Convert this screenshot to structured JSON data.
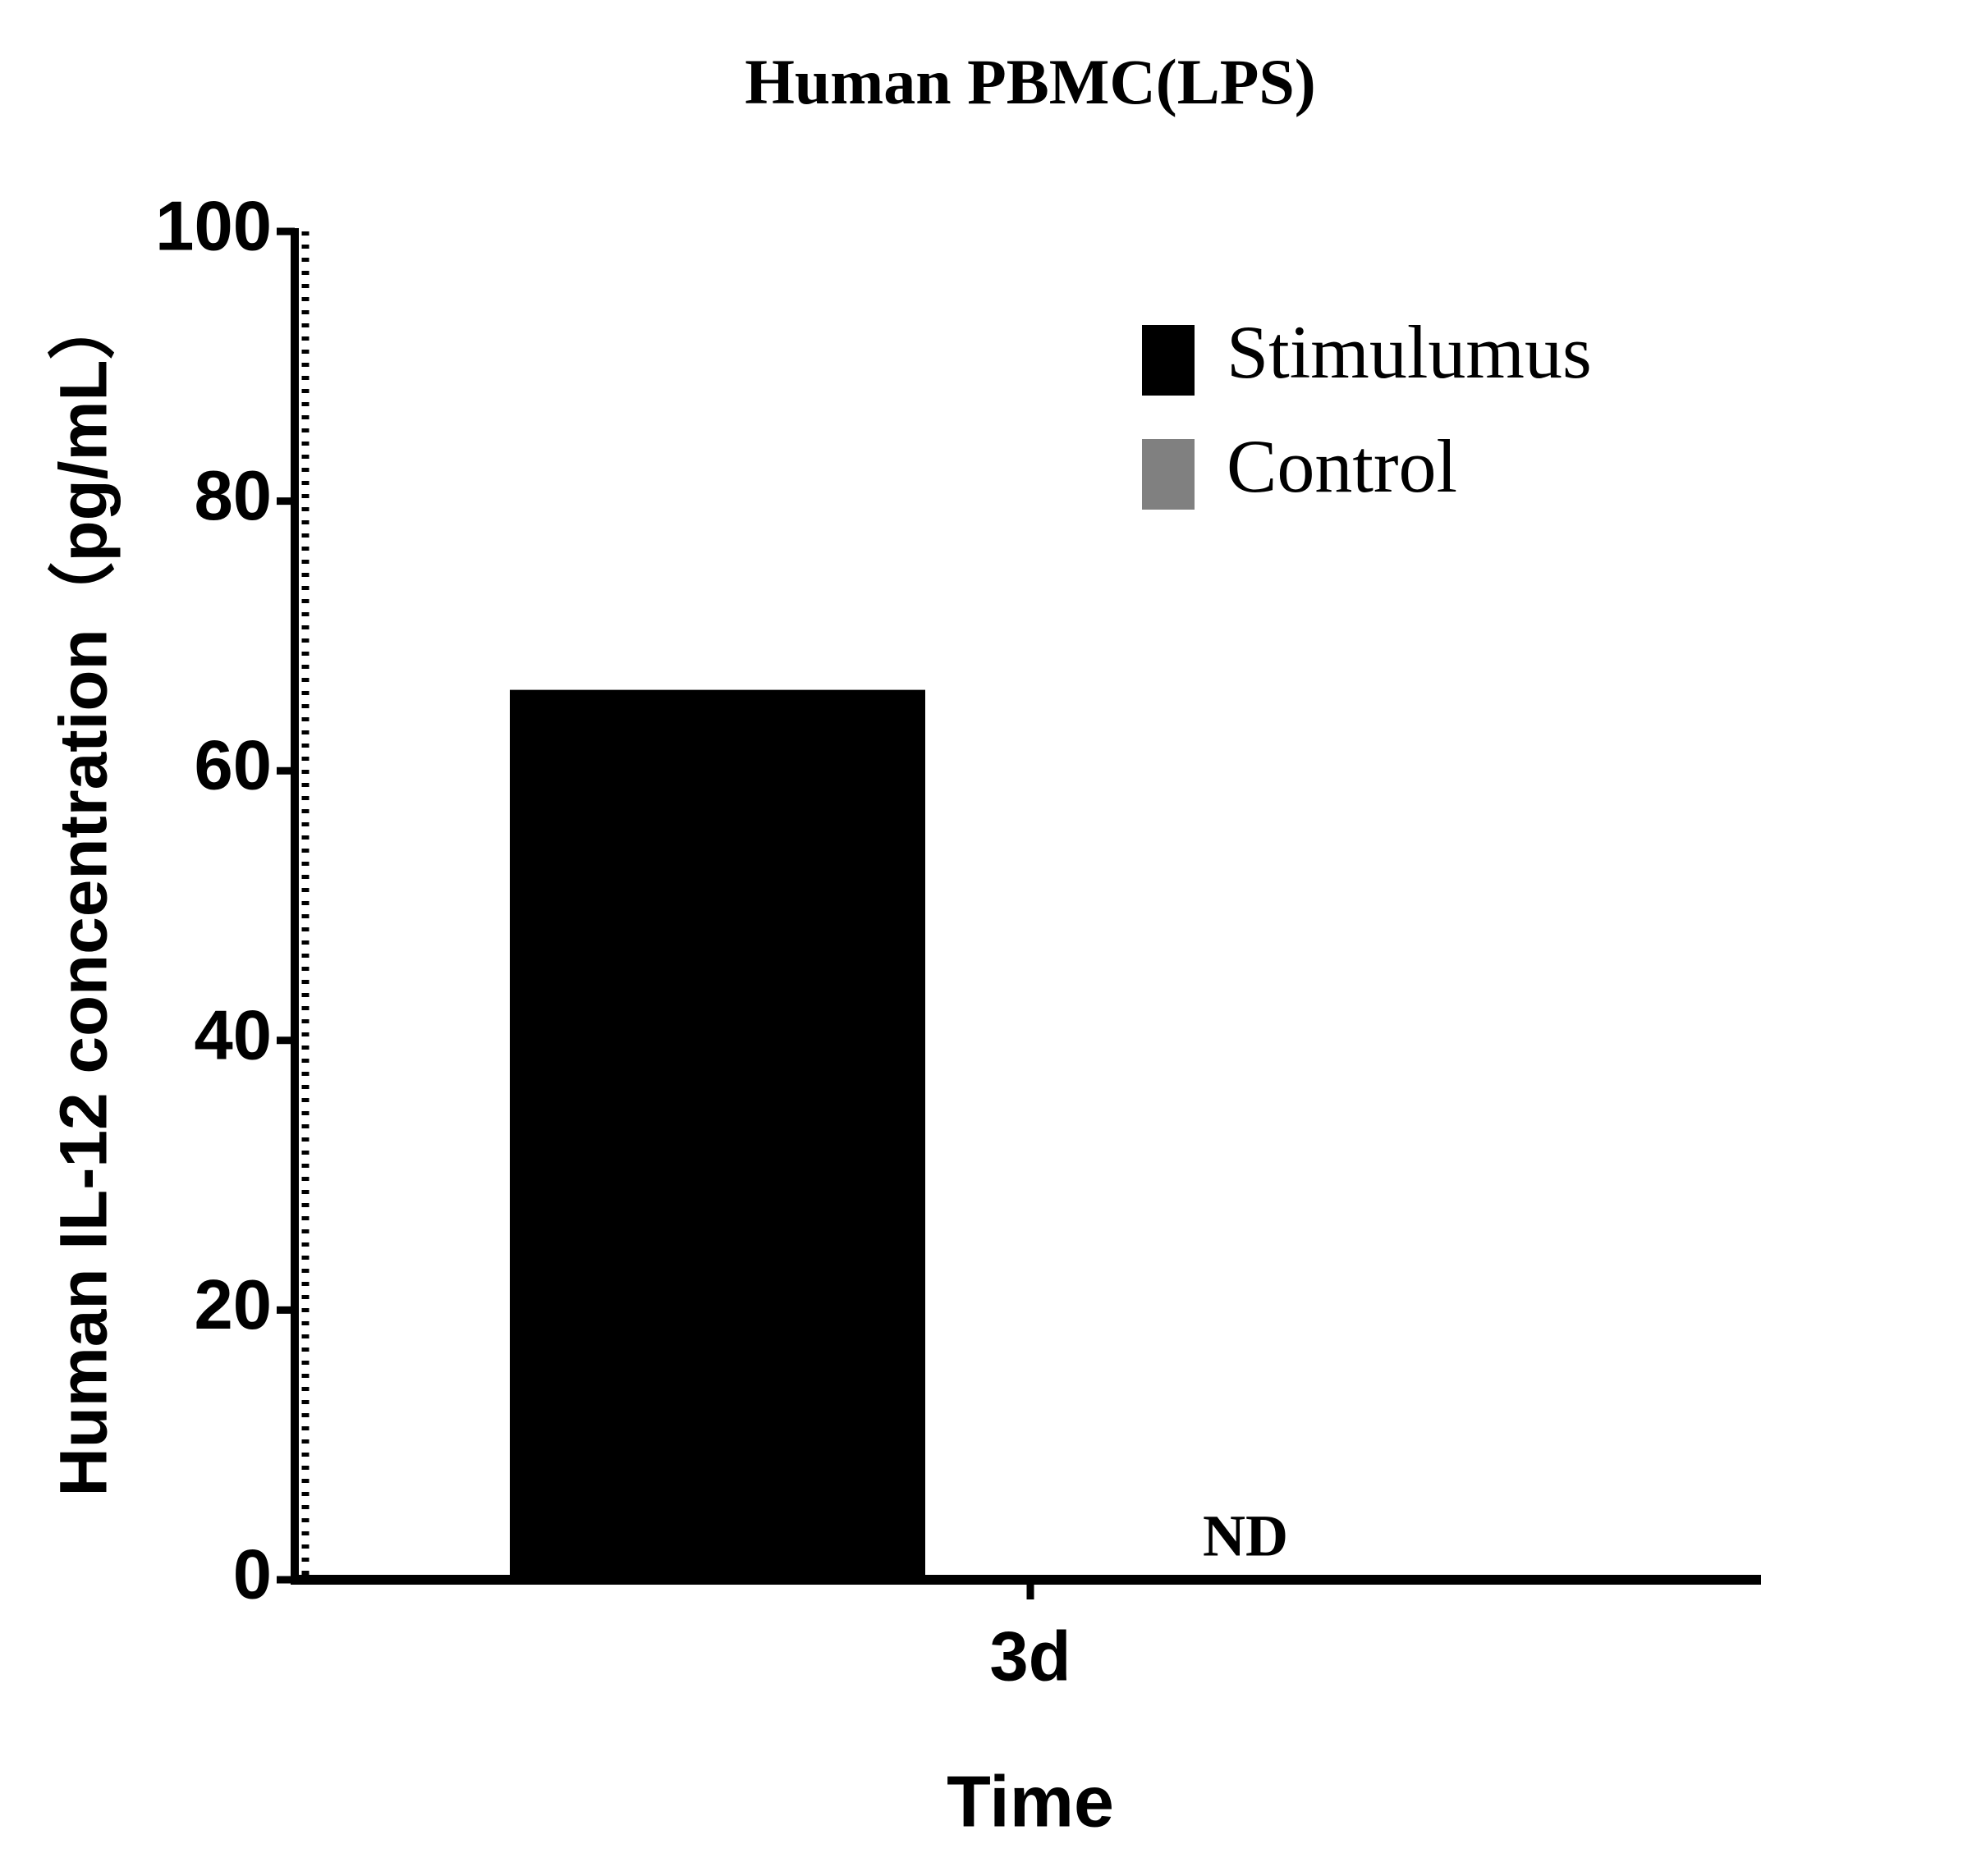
{
  "chart_data": {
    "type": "bar",
    "title": "Human PBMC(LPS)",
    "x_label": "Time",
    "y_label": "Human IL-12 concentration（pg/mL）",
    "categories": [
      "3d"
    ],
    "series": [
      {
        "name": "Stimulumus",
        "color": "#000000",
        "values": [
          66
        ]
      },
      {
        "name": "Control",
        "color": "#808080",
        "values": [
          null
        ],
        "value_labels": [
          "ND"
        ]
      }
    ],
    "ylim": [
      0,
      100
    ],
    "yticks": [
      0,
      20,
      40,
      60,
      80,
      100
    ],
    "grid": false,
    "legend": "upper right"
  }
}
